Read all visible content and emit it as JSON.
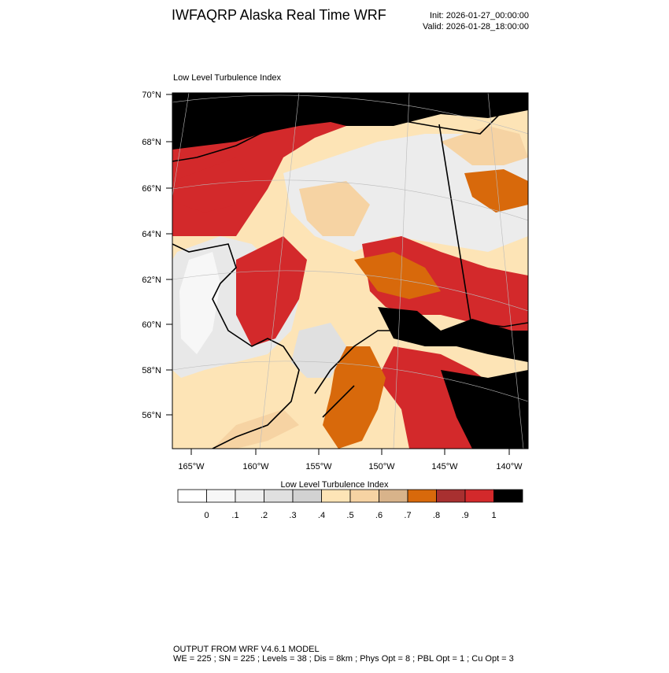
{
  "header": {
    "title": "IWFAQRP Alaska Real Time WRF",
    "init": "Init: 2026-01-27_00:00:00",
    "valid": "Valid: 2026-01-28_18:00:00"
  },
  "map": {
    "title": "Low Level Turbulence Index",
    "lat_labels": [
      "70°N",
      "68°N",
      "66°N",
      "64°N",
      "62°N",
      "60°N",
      "58°N",
      "56°N"
    ],
    "lon_labels": [
      "165°W",
      "160°W",
      "155°W",
      "150°W",
      "145°W",
      "140°W"
    ]
  },
  "colorbar": {
    "title": "Low Level Turbulence Index",
    "colors": [
      "#ffffff",
      "#f7f7f7",
      "#efefef",
      "#e0e0e0",
      "#d2d2d2",
      "#fde4b6",
      "#f6d3a3",
      "#d8b38a",
      "#d8690b",
      "#a83030",
      "#d3292b",
      "#000000"
    ],
    "ticks": [
      0,
      {
        "value": 0.1,
        "label": ".1"
      },
      {
        "value": 0.2,
        "label": ".2"
      },
      {
        "value": 0.3,
        "label": ".3"
      },
      {
        "value": 0.4,
        "label": ".4"
      },
      {
        "value": 0.5,
        "label": ".5"
      },
      {
        "value": 0.6,
        "label": ".6"
      },
      {
        "value": 0.7,
        "label": ".7"
      },
      {
        "value": 0.8,
        "label": ".8"
      },
      {
        "value": 0.9,
        "label": ".9"
      },
      1
    ]
  },
  "footer": {
    "line1": "OUTPUT FROM WRF V4.6.1 MODEL",
    "line2": "WE = 225 ; SN = 225 ; Levels = 38 ; Dis = 8km ; Phys Opt = 8 ; PBL Opt = 1 ; Cu Opt = 3"
  }
}
